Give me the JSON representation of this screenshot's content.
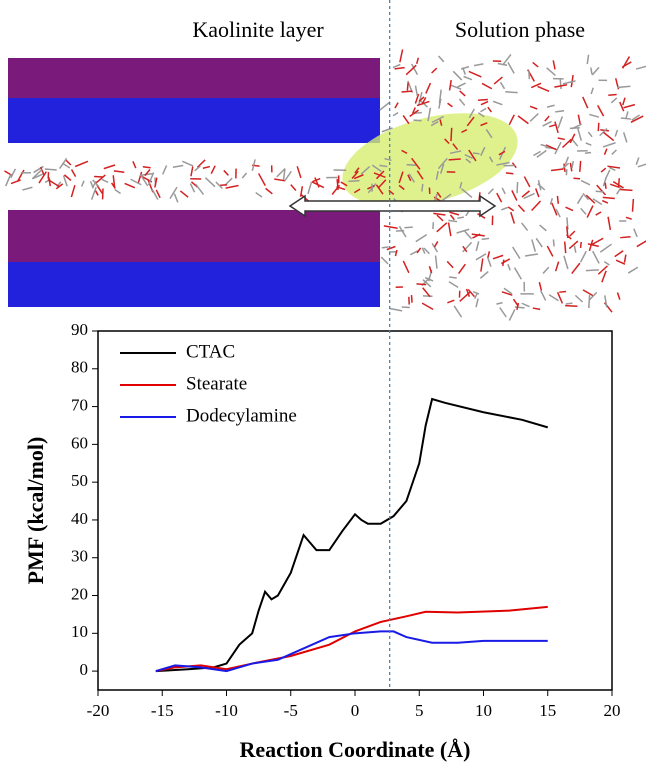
{
  "chart_data": {
    "type": "line",
    "image_labels": [
      "Kaolinite layer",
      "Solution phase"
    ],
    "x_label": "Reaction Coordinate (Å)",
    "y_label": "PMF (kcal/mol)",
    "xlim": [
      -20,
      20
    ],
    "xticks": [
      -20,
      -15,
      -10,
      -5,
      0,
      5,
      10,
      15,
      20
    ],
    "ylim": [
      -5,
      90
    ],
    "yticks": [
      0,
      10,
      20,
      30,
      40,
      50,
      60,
      70,
      80,
      90
    ],
    "reference_line_x": 2.7,
    "legend": "upper left",
    "series": [
      {
        "name": "CTAC",
        "color": "#000000",
        "x": [
          -15.5,
          -13,
          -11,
          -10,
          -9,
          -8,
          -7.5,
          -7,
          -6.5,
          -6,
          -5,
          -4,
          -3.5,
          -3,
          -2,
          -1,
          0,
          0.5,
          1,
          2,
          3,
          4,
          5,
          5.5,
          6,
          7,
          10,
          13,
          15
        ],
        "values": [
          0,
          0.5,
          1,
          2,
          7,
          10,
          16,
          21,
          19,
          20,
          26,
          36,
          34,
          32,
          32,
          37,
          41.5,
          40,
          39,
          39,
          41,
          45,
          55,
          65,
          72,
          71,
          68.5,
          66.5,
          64.5
        ]
      },
      {
        "name": "Stearate",
        "color": "#e00000",
        "x": [
          -15.5,
          -14,
          -12,
          -10,
          -8,
          -5,
          -2,
          0,
          2,
          4,
          5.5,
          8,
          12,
          15
        ],
        "values": [
          0,
          1,
          1.5,
          0.5,
          2,
          4,
          7,
          10.5,
          13,
          14.5,
          15.7,
          15.5,
          16,
          17
        ]
      },
      {
        "name": "Dodecylamine",
        "color": "#1a1ae6",
        "x": [
          -15.5,
          -14,
          -12,
          -10,
          -8,
          -6,
          -4,
          -2,
          0,
          2,
          3,
          4,
          6,
          8,
          10,
          15
        ],
        "values": [
          0,
          1.5,
          1,
          0,
          2,
          3,
          6,
          9,
          10,
          10.5,
          10.5,
          9,
          7.5,
          7.5,
          8,
          8
        ]
      }
    ]
  }
}
